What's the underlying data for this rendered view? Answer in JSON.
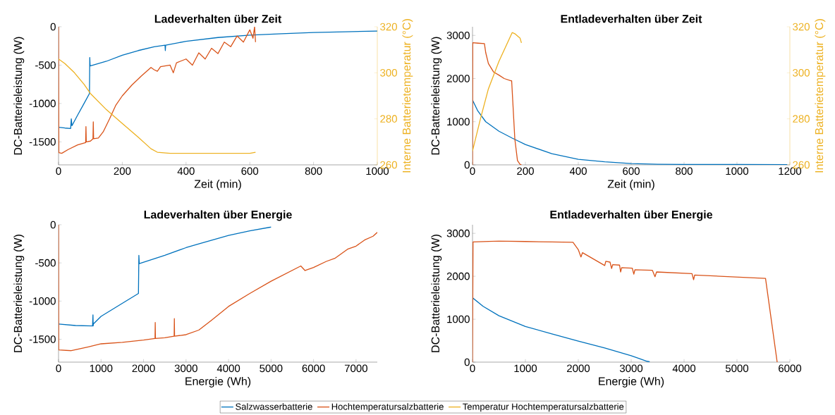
{
  "chart_data": [
    {
      "type": "line",
      "title": "Ladeverhalten über Zeit",
      "xlabel": "Zeit (min)",
      "ylabel": "DC-Batterieleistung (W)",
      "y2label": "Interne Batterietemperatur (°C)",
      "xlim": [
        0,
        1000
      ],
      "ylim": [
        -1800,
        0
      ],
      "xticks": [
        0,
        200,
        400,
        600,
        800,
        1000
      ],
      "yticks": [
        -1500,
        -1000,
        -500,
        0
      ],
      "y2lim": [
        260,
        320
      ],
      "y2ticks": [
        260,
        280,
        300,
        320
      ],
      "legend": "bottom",
      "series": [
        {
          "name": "Salzwasserbatterie",
          "color": "#0072bd",
          "x": [
            0,
            20,
            38,
            40,
            42,
            60,
            80,
            97,
            98,
            99,
            150,
            200,
            250,
            300,
            334,
            335,
            336,
            400,
            500,
            600,
            700,
            800,
            900,
            1000
          ],
          "values": [
            -1310,
            -1320,
            -1325,
            -1200,
            -1290,
            -1150,
            -1000,
            -870,
            -400,
            -510,
            -450,
            -370,
            -310,
            -260,
            -240,
            -310,
            -240,
            -190,
            -140,
            -110,
            -90,
            -75,
            -65,
            -55
          ]
        },
        {
          "name": "Hochtemperatursalzbatterie",
          "color": "#d95319",
          "x": [
            0,
            1,
            10,
            30,
            60,
            85,
            86,
            87,
            100,
            108,
            109,
            110,
            125,
            140,
            160,
            180,
            200,
            230,
            260,
            290,
            300,
            310,
            320,
            350,
            360,
            370,
            400,
            420,
            440,
            460,
            480,
            500,
            520,
            540,
            560,
            580,
            600,
            610,
            615,
            618
          ],
          "values": [
            0,
            -1640,
            -1650,
            -1600,
            -1540,
            -1510,
            -1300,
            -1500,
            -1490,
            -1460,
            -1240,
            -1460,
            -1450,
            -1370,
            -1200,
            -1020,
            -900,
            -760,
            -640,
            -530,
            -560,
            -580,
            -520,
            -500,
            -600,
            -470,
            -420,
            -500,
            -340,
            -420,
            -280,
            -350,
            -200,
            -260,
            -120,
            -200,
            -40,
            -150,
            0,
            -200
          ]
        },
        {
          "name": "Temperatur Hochtemperatursalzbatterie",
          "color": "#edb120",
          "axis": "y2",
          "x": [
            0,
            20,
            50,
            80,
            100,
            150,
            200,
            250,
            290,
            310,
            350,
            400,
            500,
            600,
            618
          ],
          "values": [
            306,
            304,
            300,
            295,
            291,
            284,
            278,
            272,
            267,
            265.5,
            265,
            265,
            265,
            265,
            265.5
          ]
        }
      ]
    },
    {
      "type": "line",
      "title": "Entladeverhalten über Zeit",
      "xlabel": "Zeit (min)",
      "ylabel": "DC-Batterieleistung (W)",
      "y2label": "Interne Batterietemperatur (°C)",
      "xlim": [
        0,
        1200
      ],
      "ylim": [
        0,
        3200
      ],
      "xticks": [
        0,
        200,
        400,
        600,
        800,
        1000,
        1200
      ],
      "yticks": [
        0,
        1000,
        2000,
        3000
      ],
      "y2lim": [
        260,
        320
      ],
      "y2ticks": [
        260,
        280,
        300,
        320
      ],
      "series": [
        {
          "color": "#0072bd",
          "x": [
            0,
            20,
            50,
            100,
            150,
            200,
            300,
            400,
            500,
            600,
            700,
            800,
            1000,
            1190
          ],
          "values": [
            1500,
            1250,
            1000,
            780,
            620,
            470,
            260,
            130,
            70,
            30,
            15,
            10,
            8,
            5
          ]
        },
        {
          "color": "#d95319",
          "x": [
            0,
            1,
            20,
            45,
            50,
            60,
            80,
            100,
            120,
            145,
            148,
            160,
            170,
            180,
            185
          ],
          "values": [
            0,
            2830,
            2820,
            2810,
            2600,
            2350,
            2150,
            2080,
            2000,
            1950,
            1950,
            600,
            100,
            10,
            0
          ]
        },
        {
          "color": "#edb120",
          "axis": "y2",
          "x": [
            0,
            30,
            60,
            100,
            150,
            160,
            180,
            185
          ],
          "values": [
            266,
            280,
            293,
            305,
            317.5,
            317,
            315,
            313
          ]
        }
      ]
    },
    {
      "type": "line",
      "title": "Ladeverhalten über Energie",
      "xlabel": "Energie (Wh)",
      "ylabel": "DC-Batterieleistung (W)",
      "xlim": [
        0,
        7500
      ],
      "ylim": [
        -1800,
        0
      ],
      "xticks": [
        0,
        1000,
        2000,
        3000,
        4000,
        5000,
        6000,
        7000
      ],
      "yticks": [
        -1500,
        -1000,
        -500,
        0
      ],
      "series": [
        {
          "color": "#0072bd",
          "x": [
            0,
            400,
            800,
            810,
            815,
            820,
            1000,
            1500,
            1880,
            1890,
            1900,
            2500,
            3000,
            3300,
            4000,
            4500,
            5000
          ],
          "values": [
            -1300,
            -1320,
            -1325,
            -1180,
            -1325,
            -1300,
            -1200,
            -1030,
            -900,
            -400,
            -510,
            -400,
            -300,
            -250,
            -140,
            -80,
            -30
          ]
        },
        {
          "color": "#d95319",
          "x": [
            0,
            5,
            300,
            700,
            1000,
            1500,
            2000,
            2270,
            2275,
            2280,
            2500,
            2720,
            2725,
            2730,
            3000,
            3300,
            3600,
            4000,
            4500,
            5000,
            5700,
            5800,
            6000,
            6300,
            6500,
            6800,
            7000,
            7200,
            7400,
            7500
          ],
          "values": [
            0,
            -1640,
            -1650,
            -1600,
            -1560,
            -1540,
            -1510,
            -1490,
            -1280,
            -1490,
            -1480,
            -1460,
            -1230,
            -1460,
            -1440,
            -1380,
            -1250,
            -1070,
            -900,
            -740,
            -540,
            -600,
            -560,
            -480,
            -440,
            -320,
            -280,
            -200,
            -150,
            -100
          ]
        }
      ]
    },
    {
      "type": "line",
      "title": "Entladeverhalten über Energie",
      "xlabel": "Energie (Wh)",
      "ylabel": "DC-Batterieleistung (W)",
      "xlim": [
        0,
        6000
      ],
      "ylim": [
        0,
        3200
      ],
      "xticks": [
        0,
        1000,
        2000,
        3000,
        4000,
        5000,
        6000
      ],
      "yticks": [
        0,
        1000,
        2000,
        3000
      ],
      "series": [
        {
          "color": "#0072bd",
          "x": [
            0,
            200,
            500,
            1000,
            1500,
            2000,
            2500,
            3000,
            3300,
            3350
          ],
          "values": [
            1500,
            1300,
            1080,
            830,
            660,
            490,
            330,
            150,
            20,
            10
          ]
        },
        {
          "color": "#d95319",
          "x": [
            0,
            10,
            500,
            1000,
            1500,
            1900,
            2000,
            2050,
            2080,
            2500,
            2520,
            2600,
            2630,
            2650,
            2780,
            2800,
            2820,
            3020,
            3050,
            3070,
            3400,
            3450,
            3480,
            4150,
            4180,
            4200,
            5540,
            5760
          ],
          "values": [
            0,
            2800,
            2820,
            2810,
            2800,
            2790,
            2620,
            2450,
            2550,
            2250,
            2350,
            2330,
            2180,
            2270,
            2260,
            2100,
            2200,
            2190,
            2050,
            2150,
            2140,
            1990,
            2100,
            2060,
            1920,
            2030,
            1950,
            0
          ]
        }
      ]
    }
  ]
}
